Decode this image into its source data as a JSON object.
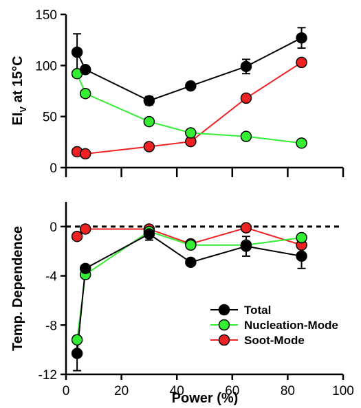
{
  "chart_data": [
    {
      "type": "line",
      "ylabel_main": "EI",
      "ylabel_sub": "V",
      "ylabel_rest": " at 15°C",
      "xlim": [
        0,
        100
      ],
      "ylim": [
        0,
        150
      ],
      "yticks": [
        0,
        50,
        100,
        150
      ],
      "series": [
        {
          "name": "Total",
          "color": "#000000",
          "points": [
            {
              "x": 4,
              "y": 113,
              "err": 18
            },
            {
              "x": 7,
              "y": 96
            },
            {
              "x": 30,
              "y": 65.5,
              "err": 4
            },
            {
              "x": 45,
              "y": 80
            },
            {
              "x": 65,
              "y": 99,
              "err": 7
            },
            {
              "x": 85,
              "y": 127,
              "err": 10
            }
          ]
        },
        {
          "name": "Nucleation-Mode",
          "color": "#33ee33",
          "points": [
            {
              "x": 4,
              "y": 92
            },
            {
              "x": 7,
              "y": 72.5
            },
            {
              "x": 30,
              "y": 45
            },
            {
              "x": 45,
              "y": 34
            },
            {
              "x": 65,
              "y": 30.5
            },
            {
              "x": 85,
              "y": 24
            }
          ]
        },
        {
          "name": "Soot-Mode",
          "color": "#ee2222",
          "points": [
            {
              "x": 4,
              "y": 15.5
            },
            {
              "x": 7,
              "y": 13.5
            },
            {
              "x": 30,
              "y": 20.5
            },
            {
              "x": 45,
              "y": 25.5
            },
            {
              "x": 65,
              "y": 68
            },
            {
              "x": 85,
              "y": 103
            }
          ]
        }
      ]
    },
    {
      "type": "line",
      "ylabel": "Temp. Dependence",
      "xlabel": "Power (%)",
      "xlim": [
        0,
        100
      ],
      "xticks": [
        0,
        20,
        40,
        60,
        80,
        100
      ],
      "ylim": [
        -12,
        2
      ],
      "yticks": [
        -12,
        -8,
        -4,
        0
      ],
      "zero_line": true,
      "series": [
        {
          "name": "Total",
          "color": "#000000",
          "points": [
            {
              "x": 4,
              "y": -10.3,
              "err": 1.4
            },
            {
              "x": 7,
              "y": -3.4
            },
            {
              "x": 30,
              "y": -0.6,
              "err": 0.5
            },
            {
              "x": 45,
              "y": -2.9
            },
            {
              "x": 65,
              "y": -1.6,
              "err": 0.8
            },
            {
              "x": 85,
              "y": -2.4,
              "err": 1.0
            }
          ]
        },
        {
          "name": "Nucleation-Mode",
          "color": "#33ee33",
          "points": [
            {
              "x": 4,
              "y": -9.2
            },
            {
              "x": 7,
              "y": -3.9
            },
            {
              "x": 30,
              "y": -0.4
            },
            {
              "x": 45,
              "y": -1.5
            },
            {
              "x": 65,
              "y": -1.5
            },
            {
              "x": 85,
              "y": -0.9
            }
          ]
        },
        {
          "name": "Soot-Mode",
          "color": "#ee2222",
          "points": [
            {
              "x": 4,
              "y": -0.8
            },
            {
              "x": 7,
              "y": -0.2
            },
            {
              "x": 30,
              "y": -0.2
            },
            {
              "x": 45,
              "y": -1.4
            },
            {
              "x": 65,
              "y": -0.1
            },
            {
              "x": 85,
              "y": -1.5
            }
          ]
        }
      ],
      "legend": {
        "placement": "bottom-right",
        "entries": [
          "Total",
          "Nucleation-Mode",
          "Soot-Mode"
        ]
      }
    }
  ]
}
